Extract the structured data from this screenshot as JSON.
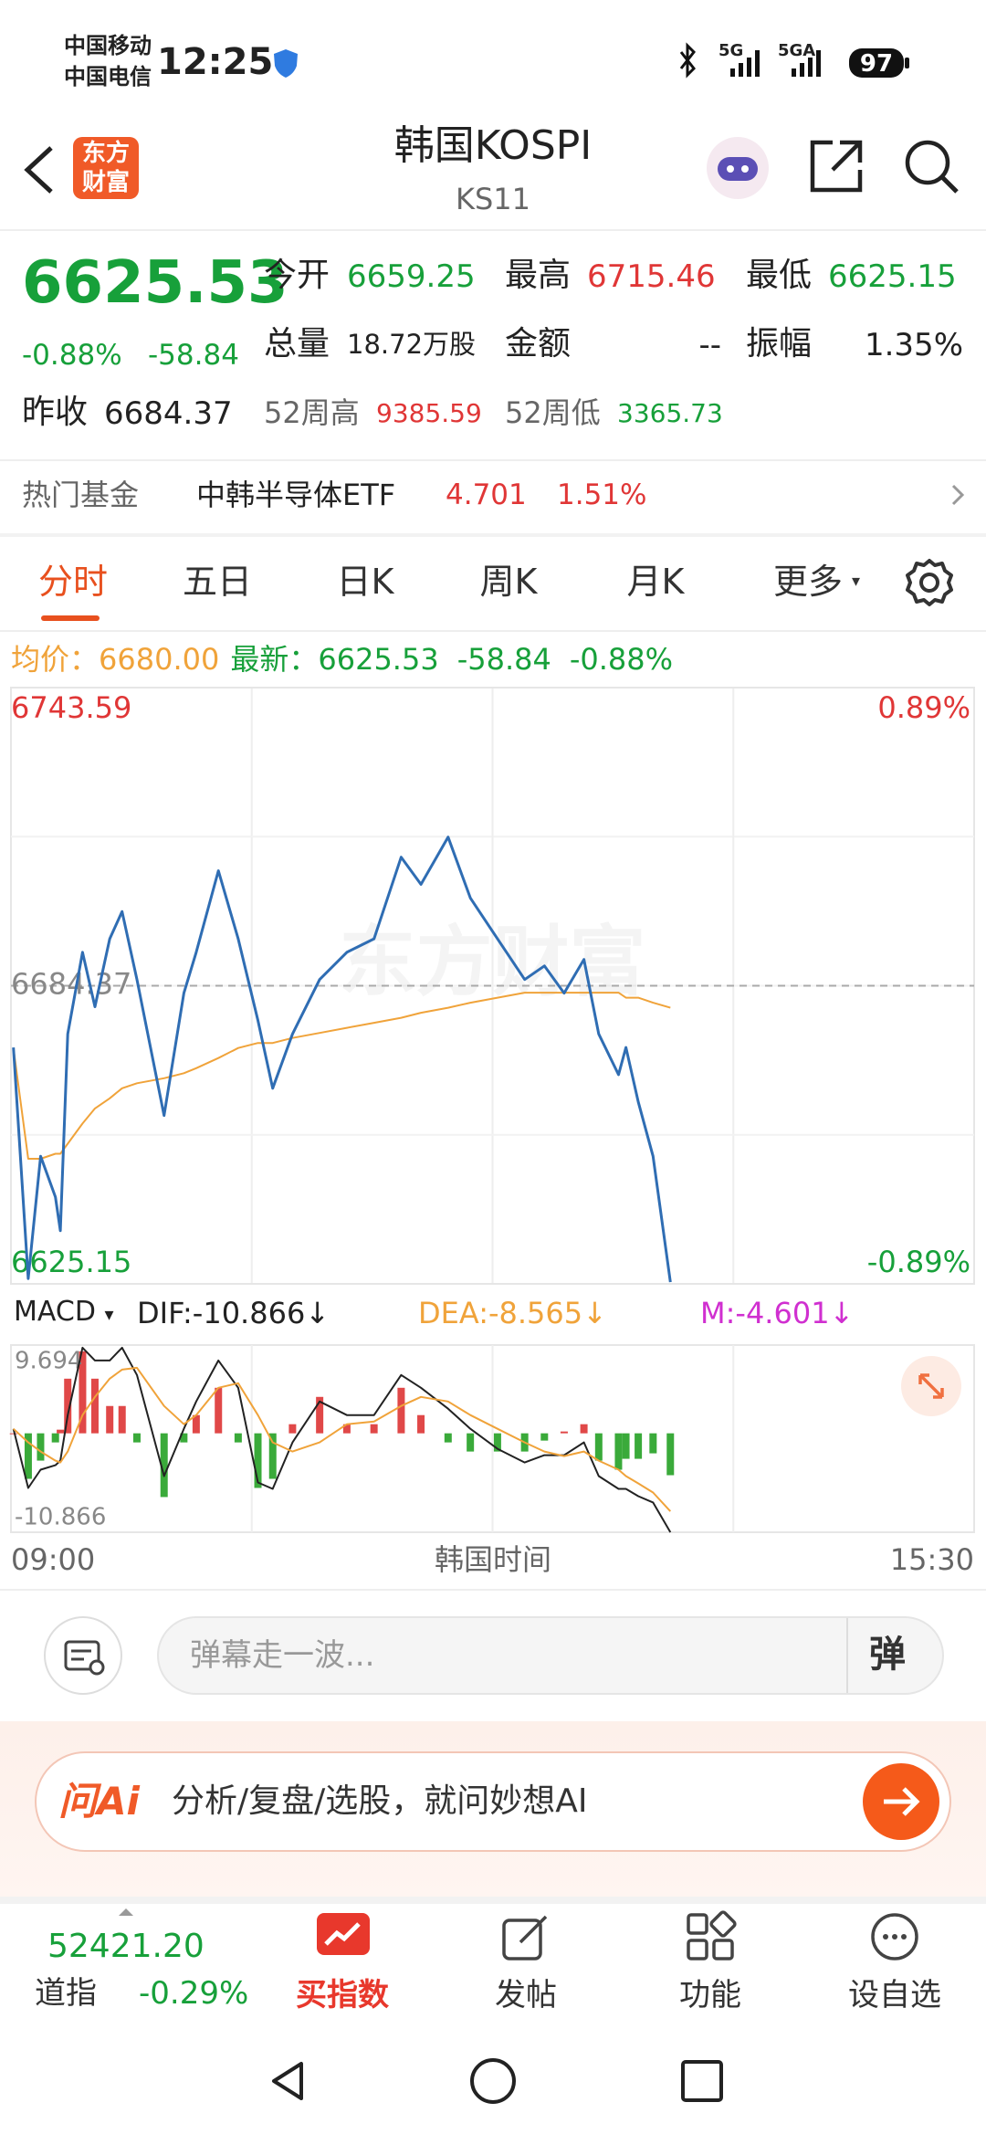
{
  "status_bar": {
    "carrier_1": "中国移动",
    "carrier_2": "中国电信",
    "time": "12:25",
    "network_1": "5G",
    "network_2": "5GA",
    "battery": "97"
  },
  "header": {
    "logo": "东方财富",
    "title": "韩国KOSPI",
    "code": "KS11"
  },
  "quote": {
    "price": "6625.53",
    "change_pct": "-0.88%",
    "change": "-58.84",
    "open_label": "今开",
    "open": "6659.25",
    "high_label": "最高",
    "high": "6715.46",
    "low_label": "最低",
    "low": "6625.15",
    "volume_label": "总量",
    "volume": "18.72万股",
    "amount_label": "金额",
    "amount": "--",
    "amplitude_label": "振幅",
    "amplitude": "1.35%",
    "prev_close_label": "昨收",
    "prev_close": "6684.37",
    "high52_label": "52周高",
    "high52": "9385.59",
    "low52_label": "52周低",
    "low52": "3365.73"
  },
  "fund": {
    "label": "热门基金",
    "name": "中韩半导体ETF",
    "price": "4.701",
    "change_pct": "1.51%"
  },
  "tabs": [
    "分时",
    "五日",
    "日K",
    "周K",
    "月K",
    "更多"
  ],
  "info": {
    "avg_label": "均价：",
    "avg": "6680.00",
    "last_label": "最新：",
    "last": "6625.53",
    "change": "-58.84",
    "change_pct": "-0.88%"
  },
  "chart_data": [
    {
      "type": "line",
      "watermark": "东方财富",
      "x": [
        "09:01",
        "09:07",
        "09:12",
        "09:18",
        "09:20",
        "09:23",
        "09:29",
        "09:34",
        "09:40",
        "09:45",
        "09:51",
        "10:02",
        "10:10",
        "10:15",
        "10:24",
        "10:32",
        "10:40",
        "10:46",
        "10:54",
        "11:05",
        "11:16",
        "11:27",
        "11:38",
        "11:46",
        "11:57",
        "12:06",
        "12:17",
        "12:28",
        "12:36",
        "12:44",
        "12:52",
        "12:58",
        "13:06",
        "13:09",
        "13:14",
        "13:20",
        "13:27"
      ],
      "series": [
        {
          "color": "#2f6db3",
          "values": [
            6672.1,
            6626.2,
            6650.5,
            6642.4,
            6635.7,
            6674.8,
            6691.0,
            6680.2,
            6693.7,
            6699.1,
            6685.6,
            6658.6,
            6682.9,
            6691.0,
            6707.2,
            6693.7,
            6677.5,
            6664.0,
            6674.8,
            6685.6,
            6691.0,
            6693.7,
            6709.9,
            6704.5,
            6713.9,
            6701.8,
            6693.7,
            6685.6,
            6688.3,
            6682.9,
            6689.6,
            6674.8,
            6666.7,
            6672.1,
            6661.3,
            6650.5,
            6625.5
          ]
        },
        {
          "color": "#f0a33a",
          "values": [
            6672,
            6650,
            6650,
            6651,
            6651,
            6653,
            6657,
            6660,
            6662,
            6664,
            6665,
            6666,
            6667,
            6668,
            6670,
            6672,
            6673,
            6673,
            6674,
            6675,
            6676,
            6677,
            6678,
            6679,
            6680,
            6681,
            6682,
            6683,
            6683,
            6683,
            6683,
            6683,
            6683,
            6682,
            6682,
            6681,
            6680
          ]
        }
      ],
      "xlim": [
        "09:00",
        "15:30"
      ],
      "ylim": [
        6625.15,
        6743.59
      ],
      "yticks": [
        6625.15,
        6684.37,
        6743.59
      ],
      "y2lim": [
        -0.89,
        0.89
      ],
      "y2ticks": [
        {
          "value": -0.89,
          "label": "-0.89%"
        },
        {
          "value": 0.89,
          "label": "0.89%"
        }
      ]
    },
    {
      "type": "macd",
      "x": [
        "09:01",
        "09:07",
        "09:12",
        "09:18",
        "09:20",
        "09:23",
        "09:29",
        "09:34",
        "09:40",
        "09:45",
        "09:51",
        "10:02",
        "10:10",
        "10:15",
        "10:24",
        "10:32",
        "10:40",
        "10:46",
        "10:54",
        "11:05",
        "11:16",
        "11:27",
        "11:38",
        "11:46",
        "11:57",
        "12:06",
        "12:17",
        "12:28",
        "12:36",
        "12:44",
        "12:52",
        "12:58",
        "13:06",
        "13:09",
        "13:14",
        "13:20",
        "13:27"
      ],
      "series": [
        {
          "color": "#222222",
          "values": [
            0.5,
            -6,
            -4,
            -3.5,
            -3,
            2,
            9.4,
            8,
            8,
            9.4,
            6.4,
            -4.7,
            0.5,
            3.5,
            8,
            5,
            -5.4,
            -6.1,
            -1,
            3.5,
            2,
            2,
            6.4,
            5,
            2.7,
            0.5,
            -1.7,
            -3.2,
            -2.4,
            -2.4,
            -1,
            -4.7,
            -6.1,
            -6.1,
            -6.9,
            -7.6,
            -10.866
          ]
        },
        {
          "color": "#f0a33a",
          "values": [
            0.5,
            -1,
            -2,
            -3,
            -3.2,
            -2,
            2,
            4,
            6,
            7,
            7.2,
            3,
            1,
            2,
            5,
            5.5,
            2,
            -1,
            -2,
            -1,
            1,
            1.3,
            3,
            4,
            3.5,
            2,
            0.5,
            -1,
            -2,
            -2.5,
            -2,
            -3,
            -4,
            -4.7,
            -5.5,
            -6.5,
            -8.565
          ]
        }
      ],
      "bars": [
        0,
        -5,
        -3,
        -1,
        0.4,
        6,
        9,
        6,
        3,
        3,
        -1,
        -7,
        -1,
        2,
        5,
        -1,
        -6,
        -5,
        1,
        4,
        1,
        1,
        5,
        2,
        -1,
        -2,
        -2,
        -2,
        -0.8,
        0.2,
        1,
        -3,
        -4,
        -2.8,
        -2.8,
        -2.2,
        -4.601
      ],
      "up_color": "#e04848",
      "down_color": "#3aaa3a",
      "xlim": [
        "09:00",
        "15:30"
      ],
      "ylim": [
        -10.866,
        9.694
      ],
      "yticks": [
        -10.866,
        9.694
      ]
    }
  ],
  "macd_legend": {
    "indicator": "MACD",
    "dif": "DIF:-10.866",
    "dea": "DEA:-8.565",
    "m": "M:-4.601",
    "arrow": "↓"
  },
  "x_axis_label": "韩国时间",
  "comment": {
    "placeholder": "弹幕走一波...",
    "button": "弹"
  },
  "ai": {
    "brand": "问Ai",
    "prompt": "分析/复盘/选股，就问妙想AI"
  },
  "bottom_nav": {
    "index_value": "52421.20",
    "index_name": "道指",
    "index_change": "-0.29%",
    "items": [
      "买指数",
      "发帖",
      "功能",
      "设自选"
    ]
  }
}
